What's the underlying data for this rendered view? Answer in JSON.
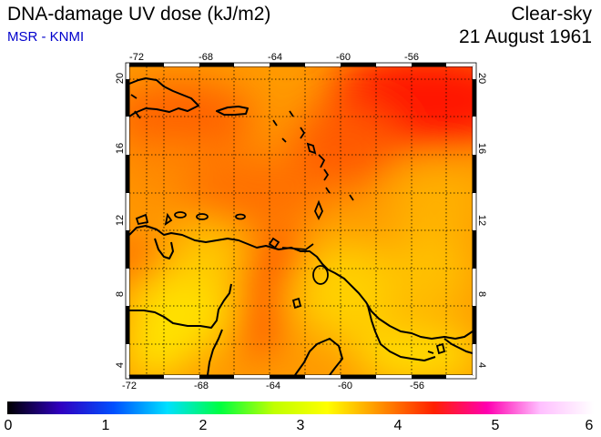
{
  "header": {
    "title": "DNA-damage UV dose (kJ/m2)",
    "credit": "MSR - KNMI",
    "condition": "Clear-sky",
    "date": "21 August 1961"
  },
  "map": {
    "region": "Caribbean / Lesser Antilles",
    "lon_range": [
      -73,
      -53
    ],
    "lat_range": [
      3.5,
      20.5
    ],
    "lon_ticks": [
      "-72",
      "-68",
      "-64",
      "-60",
      "-56"
    ],
    "lat_ticks": [
      "4",
      "8",
      "12",
      "16",
      "20"
    ],
    "grid": "dotted, every 2 degrees",
    "colors": {
      "high": "#ff1e00",
      "mid": "#ff8000",
      "low": "#ffe000"
    }
  },
  "colorbar": {
    "min": 0,
    "max": 6,
    "labels": [
      "0",
      "1",
      "2",
      "3",
      "4",
      "5",
      "6"
    ],
    "stops": [
      "#000000",
      "#3000c0",
      "#0050ff",
      "#00e0ff",
      "#00ff40",
      "#c0ff00",
      "#ffff00",
      "#ff9000",
      "#ff2000",
      "#ff00b0",
      "#ffc0ff",
      "#ffffff"
    ]
  }
}
